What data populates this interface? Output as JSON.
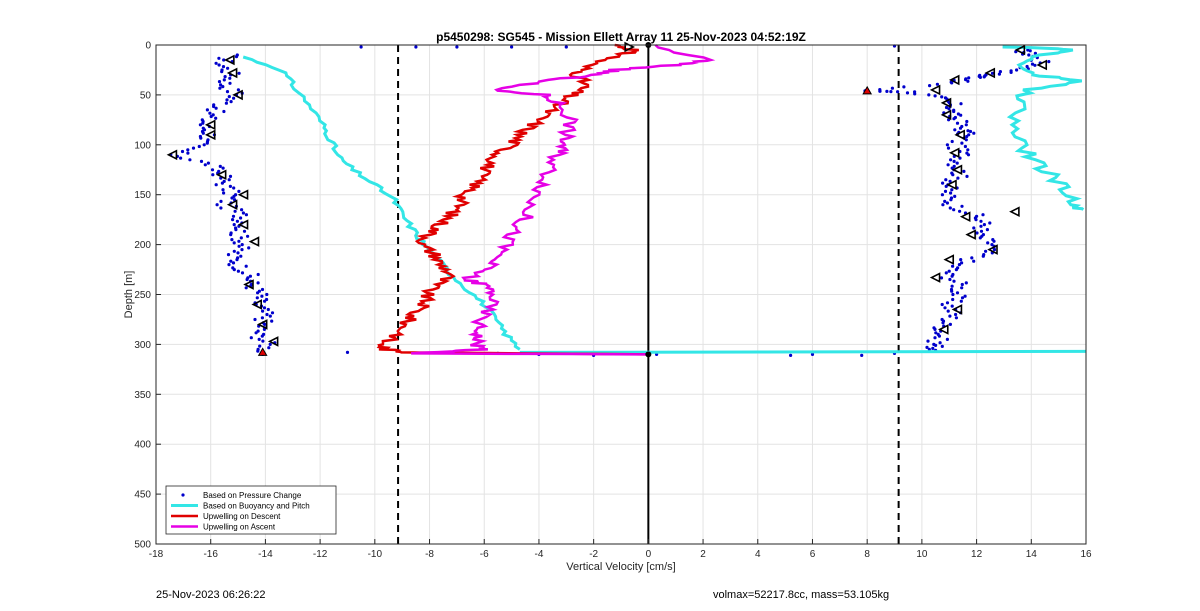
{
  "chart_data": {
    "type": "scatter",
    "title": "p5450298: SG545 - Mission Ellett Array 11 25-Nov-2023 04:52:19Z",
    "xlabel": "Vertical Velocity [cm/s]",
    "ylabel": "Depth [m]",
    "xlim": [
      -18,
      16
    ],
    "ylim": [
      500,
      0
    ],
    "y_reversed": true,
    "grid": true,
    "xticks": [
      "-18",
      "-16",
      "-14",
      "-12",
      "-10",
      "-8",
      "-6",
      "-4",
      "-2",
      "0",
      "2",
      "4",
      "6",
      "8",
      "10",
      "12",
      "14",
      "16"
    ],
    "yticks": [
      "0",
      "50",
      "100",
      "150",
      "200",
      "250",
      "300",
      "350",
      "400",
      "450",
      "500"
    ],
    "legend_position": "bottom-left",
    "reference_lines": [
      {
        "x": -9.15,
        "style": "dashed",
        "color": "#000000"
      },
      {
        "x": 0,
        "style": "solid",
        "color": "#000000"
      },
      {
        "x": 9.15,
        "style": "dashed",
        "color": "#000000"
      }
    ],
    "series": [
      {
        "name": "Based on Pressure Change",
        "style": "dots",
        "color": "#0000cc",
        "points_descent": [
          [
            -15.3,
            10
          ],
          [
            -15.6,
            20
          ],
          [
            -15.2,
            30
          ],
          [
            -15.5,
            40
          ],
          [
            -15.0,
            50
          ],
          [
            -15.6,
            60
          ],
          [
            -16.0,
            70
          ],
          [
            -16.3,
            80
          ],
          [
            -16.0,
            90
          ],
          [
            -16.5,
            100
          ],
          [
            -17.3,
            110
          ],
          [
            -16.0,
            120
          ],
          [
            -15.6,
            130
          ],
          [
            -15.5,
            140
          ],
          [
            -15.2,
            150
          ],
          [
            -15.5,
            160
          ],
          [
            -14.9,
            170
          ],
          [
            -14.8,
            180
          ],
          [
            -15.0,
            190
          ],
          [
            -14.8,
            200
          ],
          [
            -15.2,
            210
          ],
          [
            -15.0,
            220
          ],
          [
            -14.6,
            230
          ],
          [
            -14.5,
            240
          ],
          [
            -14.2,
            250
          ],
          [
            -14.3,
            260
          ],
          [
            -14.0,
            270
          ],
          [
            -14.1,
            280
          ],
          [
            -14.3,
            290
          ],
          [
            -13.9,
            300
          ],
          [
            -14.1,
            310
          ]
        ],
        "points_ascent": [
          [
            13.6,
            5
          ],
          [
            14.0,
            10
          ],
          [
            14.4,
            18
          ],
          [
            13.6,
            25
          ],
          [
            12.4,
            30
          ],
          [
            12.0,
            33
          ],
          [
            11.0,
            38
          ],
          [
            8.0,
            46
          ],
          [
            9.6,
            47
          ],
          [
            10.6,
            53
          ],
          [
            11.2,
            60
          ],
          [
            11.0,
            68
          ],
          [
            11.3,
            75
          ],
          [
            11.5,
            85
          ],
          [
            11.6,
            90
          ],
          [
            11.2,
            100
          ],
          [
            11.5,
            110
          ],
          [
            11.3,
            120
          ],
          [
            11.4,
            130
          ],
          [
            11.0,
            140
          ],
          [
            10.9,
            150
          ],
          [
            11.1,
            160
          ],
          [
            11.9,
            170
          ],
          [
            12.3,
            180
          ],
          [
            12.0,
            190
          ],
          [
            12.6,
            200
          ],
          [
            12.2,
            210
          ],
          [
            11.3,
            220
          ],
          [
            10.9,
            230
          ],
          [
            11.4,
            240
          ],
          [
            11.3,
            250
          ],
          [
            11.0,
            260
          ],
          [
            11.2,
            270
          ],
          [
            10.8,
            280
          ],
          [
            10.7,
            290
          ],
          [
            10.5,
            300
          ],
          [
            10.5,
            306
          ]
        ],
        "points_surface": [
          [
            -10.5,
            2
          ],
          [
            -8.5,
            2
          ],
          [
            -7,
            2
          ],
          [
            -5,
            2
          ],
          [
            -3,
            2
          ],
          [
            9,
            1
          ],
          [
            -11,
            308
          ],
          [
            -5.5,
            309
          ],
          [
            -4,
            310
          ],
          [
            -2,
            311
          ],
          [
            0.3,
            310
          ],
          [
            5.2,
            311
          ],
          [
            6,
            310
          ],
          [
            7.8,
            311
          ],
          [
            9,
            309
          ]
        ]
      },
      {
        "name": "Based on Buoyancy and Pitch",
        "style": "line",
        "color": "#33e6e6",
        "points_descent": [
          [
            -14.8,
            12
          ],
          [
            -13.4,
            25
          ],
          [
            -13.0,
            40
          ],
          [
            -12.4,
            60
          ],
          [
            -11.9,
            80
          ],
          [
            -11.6,
            95
          ],
          [
            -11.4,
            110
          ],
          [
            -10.8,
            125
          ],
          [
            -10.0,
            140
          ],
          [
            -9.3,
            155
          ],
          [
            -9.0,
            170
          ],
          [
            -8.6,
            185
          ],
          [
            -8.2,
            200
          ],
          [
            -7.7,
            215
          ],
          [
            -7.2,
            230
          ],
          [
            -6.6,
            245
          ],
          [
            -6.0,
            260
          ],
          [
            -5.6,
            275
          ],
          [
            -5.2,
            290
          ],
          [
            -4.7,
            305
          ]
        ],
        "points_ascent": [
          [
            13.2,
            2
          ],
          [
            15.8,
            5
          ],
          [
            14.2,
            10
          ],
          [
            13.6,
            20
          ],
          [
            14.0,
            30
          ],
          [
            15.9,
            36
          ],
          [
            13.8,
            45
          ],
          [
            13.6,
            60
          ],
          [
            13.3,
            80
          ],
          [
            13.6,
            100
          ],
          [
            14.1,
            115
          ],
          [
            14.7,
            130
          ],
          [
            15.2,
            145
          ],
          [
            15.6,
            160
          ],
          [
            15.9,
            165
          ]
        ],
        "bottom_segment": [
          [
            -4.7,
            308
          ],
          [
            16,
            307
          ]
        ]
      },
      {
        "name": "Upwelling on Descent",
        "style": "line",
        "color": "#e00000",
        "points": [
          [
            -1.2,
            0
          ],
          [
            -0.5,
            5
          ],
          [
            -1.0,
            10
          ],
          [
            -2.2,
            20
          ],
          [
            -2.6,
            30
          ],
          [
            -2.3,
            40
          ],
          [
            -2.8,
            50
          ],
          [
            -3.3,
            60
          ],
          [
            -3.8,
            70
          ],
          [
            -4.2,
            80
          ],
          [
            -4.7,
            90
          ],
          [
            -5.0,
            100
          ],
          [
            -5.5,
            110
          ],
          [
            -5.8,
            120
          ],
          [
            -6.1,
            130
          ],
          [
            -6.3,
            140
          ],
          [
            -6.7,
            150
          ],
          [
            -6.9,
            160
          ],
          [
            -7.2,
            170
          ],
          [
            -7.6,
            180
          ],
          [
            -8.0,
            190
          ],
          [
            -8.3,
            200
          ],
          [
            -7.8,
            210
          ],
          [
            -7.6,
            220
          ],
          [
            -7.2,
            230
          ],
          [
            -7.8,
            240
          ],
          [
            -8.1,
            250
          ],
          [
            -8.2,
            260
          ],
          [
            -8.6,
            270
          ],
          [
            -8.9,
            280
          ],
          [
            -9.1,
            290
          ],
          [
            -9.8,
            300
          ],
          [
            -9.6,
            305
          ],
          [
            -8.8,
            308
          ],
          [
            0,
            310
          ]
        ]
      },
      {
        "name": "Upwelling on Ascent",
        "style": "line",
        "color": "#e600e6",
        "points": [
          [
            0,
            0
          ],
          [
            2.2,
            15
          ],
          [
            1.0,
            20
          ],
          [
            -1.2,
            25
          ],
          [
            -2.0,
            30
          ],
          [
            -3.5,
            35
          ],
          [
            -5.8,
            45
          ],
          [
            -3.8,
            50
          ],
          [
            -3.2,
            60
          ],
          [
            -2.8,
            75
          ],
          [
            -3.0,
            90
          ],
          [
            -3.1,
            100
          ],
          [
            -3.3,
            110
          ],
          [
            -3.6,
            125
          ],
          [
            -3.8,
            140
          ],
          [
            -4.2,
            155
          ],
          [
            -4.4,
            170
          ],
          [
            -4.9,
            185
          ],
          [
            -5.2,
            200
          ],
          [
            -5.6,
            215
          ],
          [
            -6.0,
            225
          ],
          [
            -6.7,
            235
          ],
          [
            -6.0,
            240
          ],
          [
            -5.6,
            250
          ],
          [
            -5.9,
            265
          ],
          [
            -6.2,
            280
          ],
          [
            -6.2,
            290
          ],
          [
            -6.3,
            300
          ],
          [
            -6.0,
            305
          ],
          [
            -8.8,
            309
          ],
          [
            0,
            310
          ]
        ]
      }
    ],
    "markers_descent": [
      [
        -15.3,
        15
      ],
      [
        -15.2,
        28
      ],
      [
        -15.0,
        50
      ],
      [
        -16.0,
        80
      ],
      [
        -16.0,
        90
      ],
      [
        -17.4,
        110
      ],
      [
        -15.6,
        130
      ],
      [
        -14.8,
        150
      ],
      [
        -15.2,
        160
      ],
      [
        -14.8,
        180
      ],
      [
        -14.4,
        197
      ],
      [
        -14.6,
        240
      ],
      [
        -14.3,
        260
      ],
      [
        -14.1,
        280
      ],
      [
        -13.7,
        297
      ]
    ],
    "markers_ascent": [
      [
        13.6,
        5
      ],
      [
        14.4,
        20
      ],
      [
        12.5,
        28
      ],
      [
        11.2,
        35
      ],
      [
        10.5,
        45
      ],
      [
        10.9,
        58
      ],
      [
        10.9,
        70
      ],
      [
        11.4,
        90
      ],
      [
        11.2,
        108
      ],
      [
        11.3,
        125
      ],
      [
        11.1,
        140
      ],
      [
        11.6,
        172
      ],
      [
        13.4,
        167
      ],
      [
        11.8,
        190
      ],
      [
        12.6,
        205
      ],
      [
        11.0,
        215
      ],
      [
        10.5,
        233
      ],
      [
        11.3,
        265
      ],
      [
        10.8,
        285
      ]
    ],
    "endpoint_markers": [
      [
        -14.1,
        308
      ],
      [
        8.0,
        46
      ]
    ],
    "turn_marker": [
      -0.7,
      2
    ],
    "apogee_marker": [
      0,
      310
    ]
  },
  "footer": {
    "timestamp": "25-Nov-2023 06:26:22",
    "info": "volmax=52217.8cc, mass=53.105kg"
  }
}
